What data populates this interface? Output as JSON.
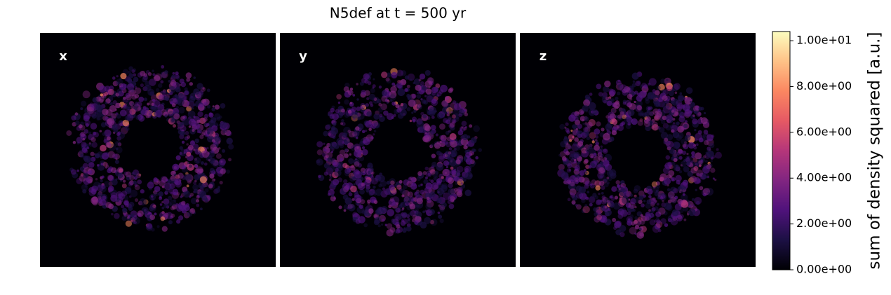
{
  "chart_data": {
    "type": "image",
    "title": "N5def at t = 500 yr",
    "panels": [
      {
        "label": "x"
      },
      {
        "label": "y"
      },
      {
        "label": "z"
      }
    ],
    "ylabel": "sum of density squared [a.u.]",
    "ylim": [
      0,
      10.4
    ],
    "yticks": [
      {
        "value": 0,
        "label": "0.00e+00"
      },
      {
        "value": 2,
        "label": "2.00e+00"
      },
      {
        "value": 4,
        "label": "4.00e+00"
      },
      {
        "value": 6,
        "label": "6.00e+00"
      },
      {
        "value": 8,
        "label": "8.00e+00"
      },
      {
        "value": 10,
        "label": "1.00e+01"
      }
    ],
    "colormap": [
      "#000004",
      "#1c1044",
      "#4f127b",
      "#812581",
      "#b5367a",
      "#e55964",
      "#fb8761",
      "#fec287",
      "#fcfdbf"
    ]
  }
}
